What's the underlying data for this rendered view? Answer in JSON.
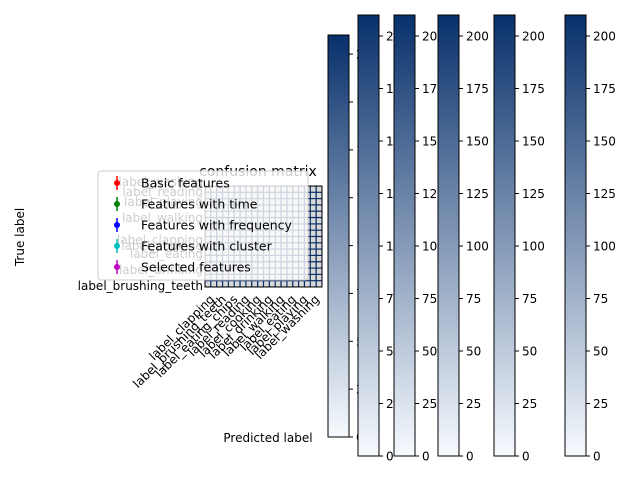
{
  "chart_data": {
    "type": "heatmap",
    "title": "confusion matrix",
    "xlabel": "Predicted label",
    "ylabel": "True label",
    "colormap": "Blues",
    "colormap_low": "#f7fbff",
    "colormap_high": "#08306b",
    "legend": {
      "placement": "center-left",
      "entries": [
        {
          "label": "Basic features",
          "color": "#ff0000"
        },
        {
          "label": "Features with time",
          "color": "#008000"
        },
        {
          "label": "Features with frequency",
          "color": "#0000ff"
        },
        {
          "label": "Features with cluster",
          "color": "#00bfbf"
        },
        {
          "label": "Selected features",
          "color": "#bf00bf"
        }
      ]
    },
    "row_labels": [
      "label_brushing_teeth",
      "label_drinking",
      "label_eating",
      "label_cooking",
      "label_clapping",
      "label_walking",
      "label_playing",
      "label_reading",
      "label_washing"
    ],
    "x_tick_labels": [
      "label_clapping",
      "label_brushing_teeth",
      "label_eating_chips",
      "label_reading",
      "label_cooking",
      "label_drinking",
      "label_walking",
      "label_eating",
      "label_playing",
      "label_washing"
    ],
    "colorbars": [
      {
        "range": [
          0,
          210
        ],
        "ticks": [
          0,
          25,
          50,
          75,
          100,
          125,
          150,
          175,
          200
        ]
      },
      {
        "range": [
          0,
          210
        ],
        "ticks": [
          0,
          25,
          50,
          75,
          100,
          125,
          150,
          175,
          200
        ]
      },
      {
        "range": [
          0,
          210
        ],
        "ticks": [
          0,
          25,
          50,
          75,
          100,
          125,
          150,
          175,
          200
        ]
      },
      {
        "range": [
          0,
          210
        ],
        "ticks": [
          0,
          25,
          50,
          75,
          100,
          125,
          150,
          175,
          200
        ]
      },
      {
        "range": [
          0,
          210
        ],
        "ticks": [
          0,
          25,
          50,
          75,
          100,
          125,
          150,
          175,
          200
        ]
      },
      {
        "range": [
          0,
          210
        ],
        "ticks": [
          0,
          25,
          50,
          75,
          100,
          125,
          150,
          175,
          200
        ]
      }
    ]
  }
}
